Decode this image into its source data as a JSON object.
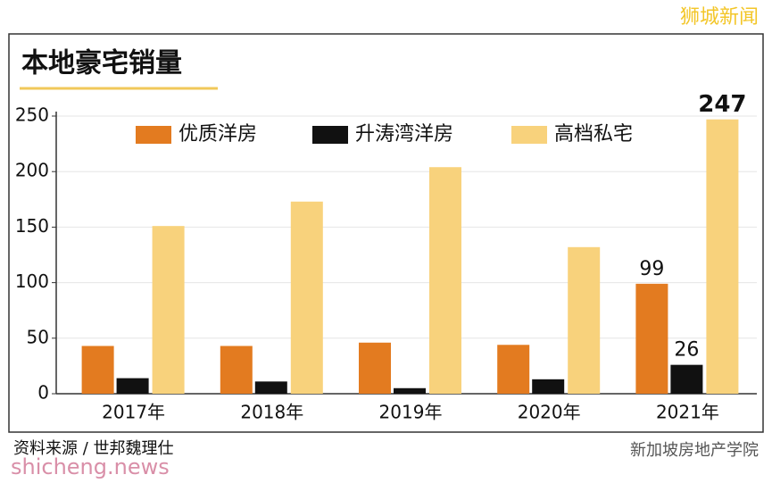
{
  "chart_data": {
    "type": "bar",
    "title": "本地豪宅销量",
    "categories": [
      "2017年",
      "2018年",
      "2019年",
      "2020年",
      "2021年"
    ],
    "series": [
      {
        "name": "优质洋房",
        "color": "#e37b20",
        "values": [
          43,
          43,
          46,
          44,
          99
        ]
      },
      {
        "name": "升涛湾洋房",
        "color": "#111111",
        "values": [
          14,
          11,
          5,
          13,
          26
        ]
      },
      {
        "name": "高档私宅",
        "color": "#f8d27c",
        "values": [
          151,
          173,
          204,
          132,
          247
        ]
      }
    ],
    "ylim": [
      0,
      250
    ],
    "yticks": [
      0,
      50,
      100,
      150,
      200,
      250
    ],
    "grid": true,
    "source": "资料来源 / 世邦魏理仕"
  },
  "watermarks": [
    "狮城新闻",
    "shicheng.news",
    "新加坡房地产学院"
  ]
}
